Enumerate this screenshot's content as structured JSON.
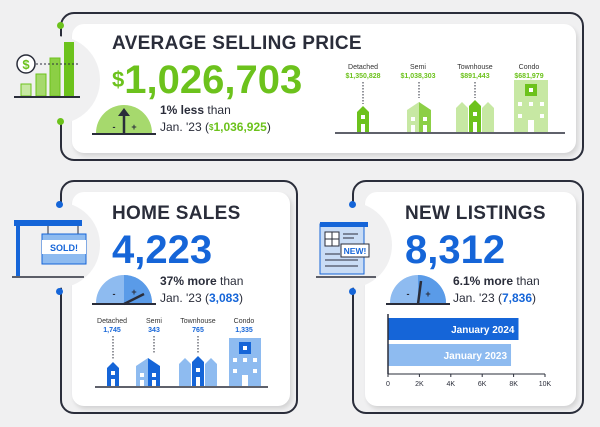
{
  "colors": {
    "green": "#6cc21c",
    "light_green": "#c7e8a3",
    "blue": "#1565d8",
    "light_blue": "#8ebbf0",
    "dark": "#2a2d3a"
  },
  "avg_price": {
    "title": "AVERAGE SELLING PRICE",
    "currency": "$",
    "value": "1,026,703",
    "change_bold": "1% less",
    "change_rest": " than",
    "prev_prefix": "Jan. '23 (",
    "prev_currency": "$",
    "prev_value": "1,036,925",
    "prev_suffix": ")",
    "types": [
      {
        "label": "Detached",
        "value": "$1,350,828"
      },
      {
        "label": "Semi",
        "value": "$1,038,303"
      },
      {
        "label": "Townhouse",
        "value": "$891,443"
      },
      {
        "label": "Condo",
        "value": "$681,979"
      }
    ],
    "icon": "bar-chart-dollar-icon"
  },
  "home_sales": {
    "title": "HOME SALES",
    "value": "4,223",
    "change_bold": "37% more",
    "change_rest": " than",
    "prev_prefix": "Jan. '23 (",
    "prev_value": "3,083",
    "prev_suffix": ")",
    "sign_text": "SOLD!",
    "types": [
      {
        "label": "Detached",
        "value": "1,745"
      },
      {
        "label": "Semi",
        "value": "343"
      },
      {
        "label": "Townhouse",
        "value": "765"
      },
      {
        "label": "Condo",
        "value": "1,335"
      }
    ]
  },
  "new_listings": {
    "title": "NEW LISTINGS",
    "value": "8,312",
    "change_bold": "6.1% more",
    "change_rest": " than",
    "prev_prefix": "Jan. '23 (",
    "prev_value": "7,836",
    "prev_suffix": ")",
    "badge_text": "NEW!"
  },
  "chart_data": {
    "type": "bar",
    "orientation": "horizontal",
    "categories": [
      "January 2024",
      "January 2023"
    ],
    "values": [
      8312,
      7836
    ],
    "xlim": [
      0,
      10000
    ],
    "xticks": [
      0,
      2000,
      4000,
      6000,
      8000,
      10000
    ],
    "xtick_labels": [
      "0",
      "2K",
      "4K",
      "6K",
      "8K",
      "10K"
    ],
    "title": "",
    "xlabel": "",
    "ylabel": "",
    "grid": false
  }
}
